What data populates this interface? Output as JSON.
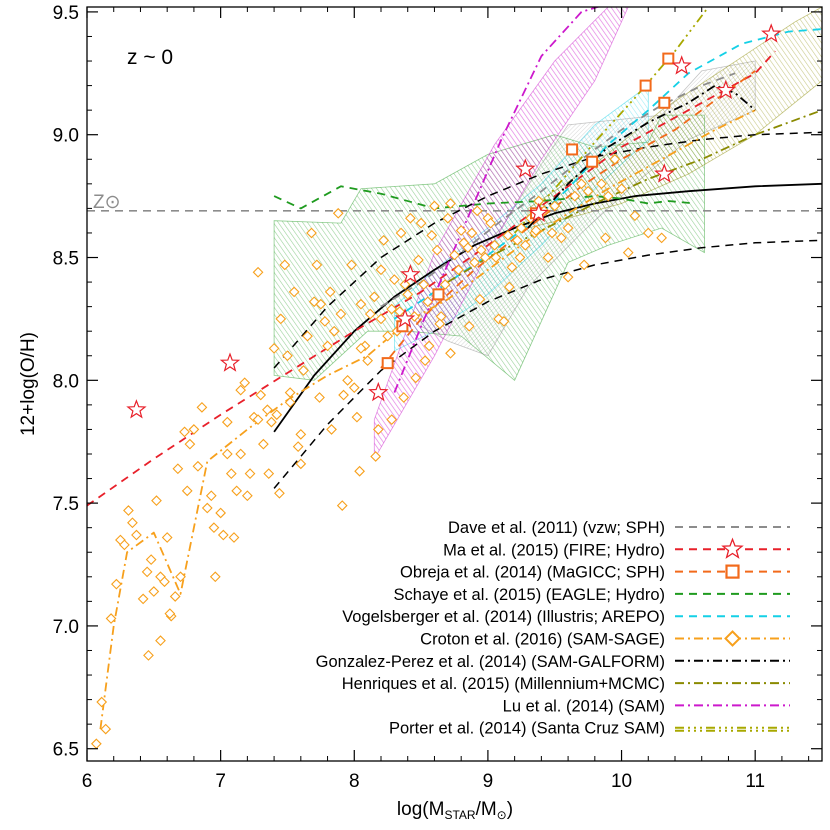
{
  "chart_data": {
    "type": "scatter",
    "title": "",
    "annotation": "z ~ 0",
    "solar_label": "Z⊙",
    "xlabel": {
      "base": "log(M",
      "sub1": "STAR",
      "mid": "/M",
      "sub2": "⊙",
      "end": ")"
    },
    "ylabel": "12+log(O/H)",
    "xlim": [
      6,
      11.5
    ],
    "ylim": [
      6.45,
      9.52
    ],
    "xticks": [
      6,
      7,
      8,
      9,
      10,
      11
    ],
    "yticks": [
      6.5,
      7.0,
      7.5,
      8.0,
      8.5,
      9.0,
      9.5
    ],
    "ytick_labels": [
      "6.5",
      "7.0",
      "7.5",
      "8.0",
      "8.5",
      "9.0",
      "9.5"
    ],
    "solar_value": 8.69,
    "legend_position": "bottom-right",
    "colors": {
      "dave": "#8c8c8c",
      "ma": "#e8202a",
      "obreja": "#f26a1b",
      "schaye": "#1f9b1f",
      "vogelsberger": "#14d0e6",
      "croton": "#f7a01c",
      "gonzalez": "#000000",
      "henriques": "#8a8a00",
      "lu": "#cc19cc",
      "porter": "#a8a800",
      "observed": "#000000"
    },
    "legend": [
      {
        "key": "dave",
        "label": "Dave et al. (2011) (vzw; SPH)",
        "dash": "8,6",
        "marker": "none"
      },
      {
        "key": "ma",
        "label": "Ma et al. (2015) (FIRE; Hydro)",
        "dash": "8,6",
        "marker": "star"
      },
      {
        "key": "obreja",
        "label": "Obreja et al. (2014) (MaGICC; SPH)",
        "dash": "8,6",
        "marker": "square"
      },
      {
        "key": "schaye",
        "label": "Schaye et al. (2015) (EAGLE; Hydro)",
        "dash": "8,6",
        "marker": "none"
      },
      {
        "key": "vogelsberger",
        "label": "Vogelsberger et al. (2014) (Illustris; AREPO)",
        "dash": "8,6",
        "marker": "none"
      },
      {
        "key": "croton",
        "label": "Croton et al. (2016) (SAM-SAGE)",
        "dash": "9,4,2,4",
        "marker": "diamond"
      },
      {
        "key": "gonzalez",
        "label": "Gonzalez-Perez et al. (2014) (SAM-GALFORM)",
        "dash": "9,4,2,4",
        "marker": "none"
      },
      {
        "key": "henriques",
        "label": "Henriques et al. (2015) (Millennium+MCMC)",
        "dash": "9,4,2,4",
        "marker": "none"
      },
      {
        "key": "lu",
        "label": "Lu et al. (2014) (SAM)",
        "dash": "9,4,2,4",
        "marker": "none"
      },
      {
        "key": "porter",
        "label": "Porter et al. (2014) (Santa Cruz SAM)",
        "dash": "9,4,2,4,2,4,2,4",
        "marker": "none"
      }
    ],
    "series": [
      {
        "key": "observed",
        "style": "solid",
        "x": [
          7.4,
          7.7,
          8.0,
          8.3,
          8.6,
          8.9,
          9.2,
          9.5,
          9.8,
          10.1,
          10.5,
          11.0,
          11.5
        ],
        "y": [
          7.79,
          8.02,
          8.2,
          8.34,
          8.45,
          8.55,
          8.62,
          8.68,
          8.72,
          8.75,
          8.77,
          8.79,
          8.8
        ]
      },
      {
        "key": "observed_upper",
        "style": "dashed",
        "x": [
          7.4,
          7.8,
          8.2,
          8.6,
          9.0,
          9.4,
          9.8,
          10.2,
          10.6,
          11.0,
          11.5
        ],
        "y": [
          8.05,
          8.3,
          8.5,
          8.64,
          8.75,
          8.84,
          8.91,
          8.95,
          8.98,
          9.0,
          9.01
        ]
      },
      {
        "key": "observed_lower",
        "style": "dashed",
        "x": [
          7.4,
          7.8,
          8.2,
          8.6,
          9.0,
          9.4,
          9.8,
          10.2,
          10.6,
          11.0,
          11.5
        ],
        "y": [
          7.56,
          7.82,
          8.04,
          8.2,
          8.32,
          8.41,
          8.47,
          8.51,
          8.54,
          8.56,
          8.57
        ]
      },
      {
        "key": "dave",
        "x": [
          8.2,
          8.5,
          8.8,
          9.1,
          9.4,
          9.7,
          10.0,
          10.3,
          10.6,
          10.85
        ],
        "y": [
          8.3,
          8.4,
          8.52,
          8.65,
          8.77,
          8.9,
          9.02,
          9.12,
          9.2,
          9.25
        ]
      },
      {
        "key": "ma",
        "x": [
          6.0,
          6.5,
          7.0,
          7.5,
          8.0,
          8.5,
          9.0,
          9.5,
          10.0,
          10.5,
          11.0,
          11.15
        ],
        "y": [
          7.49,
          7.68,
          7.86,
          8.03,
          8.2,
          8.36,
          8.55,
          8.75,
          8.95,
          9.1,
          9.25,
          9.34
        ]
      },
      {
        "key": "obreja",
        "x": [
          8.2,
          8.5,
          8.9,
          9.3,
          9.7,
          10.0,
          10.4,
          10.7,
          11.0
        ],
        "y": [
          8.05,
          8.25,
          8.45,
          8.62,
          8.79,
          8.9,
          9.02,
          9.14,
          9.26
        ]
      },
      {
        "key": "schaye",
        "x": [
          7.4,
          7.6,
          7.9,
          8.2,
          8.6,
          9.0,
          9.4,
          9.8,
          10.0,
          10.2,
          10.35,
          10.55
        ],
        "y": [
          8.75,
          8.7,
          8.79,
          8.76,
          8.7,
          8.72,
          8.73,
          8.75,
          8.74,
          8.72,
          8.73,
          8.72
        ]
      },
      {
        "key": "vogelsberger",
        "x": [
          8.3,
          8.6,
          9.0,
          9.3,
          9.6,
          9.9,
          10.2,
          10.5,
          10.9,
          11.25,
          11.5
        ],
        "y": [
          8.25,
          8.36,
          8.51,
          8.63,
          8.78,
          8.96,
          9.1,
          9.25,
          9.37,
          9.42,
          9.43
        ]
      },
      {
        "key": "croton",
        "x": [
          6.1,
          6.2,
          6.3,
          6.5,
          6.7,
          6.9,
          7.2,
          7.5,
          7.8,
          8.1,
          8.4,
          8.7,
          9.0,
          9.3,
          9.6,
          9.9,
          10.3,
          10.7,
          11.0
        ],
        "y": [
          6.58,
          7.0,
          7.3,
          7.38,
          7.13,
          7.67,
          7.8,
          7.92,
          8.02,
          8.1,
          8.24,
          8.33,
          8.45,
          8.57,
          8.68,
          8.78,
          8.9,
          9.02,
          9.1
        ]
      },
      {
        "key": "gonzalez",
        "x": [
          9.3,
          9.6,
          9.9,
          10.2,
          10.5,
          10.7,
          10.85,
          11.0
        ],
        "y": [
          8.62,
          8.8,
          8.95,
          9.05,
          9.13,
          9.2,
          9.17,
          9.1
        ]
      },
      {
        "key": "henriques",
        "x": [
          8.7,
          9.0,
          9.4,
          9.8,
          10.2,
          10.6,
          11.0,
          11.5
        ],
        "y": [
          8.4,
          8.5,
          8.61,
          8.72,
          8.82,
          8.9,
          9.0,
          9.1
        ]
      },
      {
        "key": "lu",
        "x": [
          8.3,
          8.5,
          8.8,
          9.1,
          9.4,
          9.7,
          10.0
        ],
        "y": [
          7.95,
          8.22,
          8.6,
          8.98,
          9.32,
          9.5,
          9.55
        ]
      },
      {
        "key": "porter",
        "x": [
          9.2,
          9.5,
          9.8,
          10.1,
          10.4,
          10.65
        ],
        "y": [
          8.6,
          8.78,
          8.97,
          9.15,
          9.34,
          9.52
        ]
      }
    ],
    "bands": [
      {
        "key": "schaye",
        "opacity": 0.45,
        "points": [
          [
            7.4,
            8.65
          ],
          [
            7.9,
            8.64
          ],
          [
            8.05,
            8.78
          ],
          [
            8.6,
            8.8
          ],
          [
            9.0,
            8.92
          ],
          [
            9.5,
            9.0
          ],
          [
            9.8,
            8.95
          ],
          [
            10.2,
            8.97
          ],
          [
            10.3,
            9.08
          ],
          [
            10.62,
            9.08
          ],
          [
            10.62,
            8.52
          ],
          [
            10.3,
            8.62
          ],
          [
            9.9,
            8.55
          ],
          [
            9.6,
            8.48
          ],
          [
            9.2,
            8.0
          ],
          [
            8.8,
            8.18
          ],
          [
            8.4,
            8.2
          ],
          [
            8.1,
            8.2
          ],
          [
            7.7,
            8.0
          ],
          [
            7.4,
            8.02
          ]
        ]
      },
      {
        "key": "vogelsberger",
        "opacity": 0.4,
        "points": [
          [
            8.3,
            8.3
          ],
          [
            8.6,
            8.45
          ],
          [
            9.0,
            8.62
          ],
          [
            9.4,
            8.8
          ],
          [
            9.8,
            9.04
          ],
          [
            10.2,
            9.2
          ],
          [
            10.2,
            8.98
          ],
          [
            9.8,
            8.78
          ],
          [
            9.4,
            8.55
          ],
          [
            9.0,
            8.35
          ],
          [
            8.6,
            8.2
          ],
          [
            8.3,
            8.12
          ]
        ]
      },
      {
        "key": "dave",
        "opacity": 0.35,
        "points": [
          [
            8.5,
            8.3
          ],
          [
            8.8,
            8.46
          ],
          [
            9.1,
            8.62
          ],
          [
            9.4,
            8.88
          ],
          [
            9.6,
            9.04
          ],
          [
            10.3,
            9.08
          ],
          [
            10.6,
            9.26
          ],
          [
            11.0,
            9.3
          ],
          [
            11.0,
            9.1
          ],
          [
            10.5,
            8.98
          ],
          [
            10.1,
            8.8
          ],
          [
            9.7,
            8.6
          ],
          [
            9.3,
            8.38
          ],
          [
            9.0,
            8.1
          ],
          [
            8.7,
            8.16
          ],
          [
            8.5,
            8.22
          ]
        ]
      },
      {
        "key": "lu",
        "opacity": 0.55,
        "points": [
          [
            8.15,
            7.84
          ],
          [
            8.6,
            8.52
          ],
          [
            9.05,
            8.96
          ],
          [
            9.5,
            9.3
          ],
          [
            9.9,
            9.52
          ],
          [
            10.05,
            9.52
          ],
          [
            9.8,
            9.22
          ],
          [
            9.4,
            8.9
          ],
          [
            9.0,
            8.52
          ],
          [
            8.6,
            8.1
          ],
          [
            8.15,
            7.68
          ]
        ]
      },
      {
        "key": "henriques",
        "opacity": 0.45,
        "points": [
          [
            9.3,
            8.7
          ],
          [
            9.8,
            8.88
          ],
          [
            10.3,
            9.1
          ],
          [
            10.8,
            9.28
          ],
          [
            11.3,
            9.46
          ],
          [
            11.5,
            9.52
          ],
          [
            11.5,
            9.22
          ],
          [
            11.0,
            9.0
          ],
          [
            10.5,
            8.84
          ],
          [
            10.0,
            8.72
          ],
          [
            9.6,
            8.66
          ],
          [
            9.3,
            8.62
          ]
        ]
      }
    ],
    "ma_stars": {
      "x": [
        6.37,
        7.07,
        8.18,
        8.38,
        8.42,
        9.28,
        9.38,
        10.32,
        10.45,
        10.78,
        11.12
      ],
      "y": [
        7.88,
        8.07,
        7.95,
        8.25,
        8.43,
        8.86,
        8.68,
        8.84,
        9.28,
        9.18,
        9.41
      ]
    },
    "obreja_squares": {
      "x": [
        8.25,
        8.36,
        8.63,
        9.36,
        9.63,
        9.78,
        10.18,
        10.32,
        10.35
      ],
      "y": [
        8.07,
        8.22,
        8.35,
        8.68,
        8.94,
        8.89,
        9.2,
        9.13,
        9.31
      ]
    },
    "croton_points": {
      "x": [
        6.07,
        6.11,
        6.14,
        6.18,
        6.22,
        6.25,
        6.28,
        6.31,
        6.34,
        6.37,
        6.42,
        6.45,
        6.48,
        6.5,
        6.52,
        6.55,
        6.58,
        6.6,
        6.63,
        6.66,
        6.7,
        6.73,
        6.77,
        6.8,
        6.83,
        6.86,
        6.9,
        6.93,
        6.96,
        7.0,
        7.02,
        7.05,
        7.08,
        7.1,
        7.12,
        7.15,
        7.18,
        7.2,
        7.22,
        7.25,
        7.28,
        7.3,
        7.32,
        7.35,
        7.38,
        7.4,
        7.42,
        7.45,
        7.48,
        7.5,
        7.52,
        7.55,
        7.58,
        7.6,
        7.62,
        7.65,
        7.68,
        7.7,
        7.72,
        7.75,
        7.78,
        7.8,
        7.82,
        7.85,
        7.88,
        7.9,
        7.92,
        7.95,
        7.98,
        8.0,
        8.02,
        8.05,
        8.08,
        8.1,
        8.12,
        8.15,
        8.18,
        8.2,
        8.22,
        8.25,
        8.28,
        8.3,
        8.32,
        8.35,
        8.38,
        8.4,
        8.42,
        8.45,
        8.48,
        8.5,
        8.52,
        8.55,
        8.58,
        8.6,
        8.62,
        8.65,
        8.68,
        8.7,
        8.72,
        8.75,
        8.78,
        8.8,
        8.82,
        8.85,
        8.88,
        8.9,
        8.92,
        8.95,
        8.98,
        9.0,
        9.02,
        9.05,
        9.08,
        9.12,
        9.15,
        9.18,
        9.22,
        9.25,
        9.28,
        9.32,
        9.35,
        9.38,
        9.42,
        9.45,
        9.5,
        9.55,
        9.6,
        9.65,
        9.7,
        9.75,
        9.8,
        9.85,
        9.9,
        9.95,
        10.0,
        10.05,
        10.1,
        10.2,
        10.3,
        6.46,
        6.55,
        6.62,
        6.68,
        6.75,
        6.95,
        7.05,
        7.15,
        7.28,
        7.36,
        7.44,
        7.52,
        7.6,
        7.74,
        7.83,
        7.91,
        8.04,
        8.16,
        8.28,
        8.37,
        8.46,
        8.56,
        8.64,
        8.72,
        8.86,
        8.94,
        9.06,
        9.16,
        9.24,
        9.36,
        9.48,
        9.6,
        9.72,
        9.88,
        8.05,
        8.2,
        8.34,
        8.53,
        8.64
      ],
      "y": [
        6.52,
        6.69,
        6.58,
        7.03,
        7.17,
        7.35,
        7.33,
        7.47,
        7.42,
        7.37,
        7.11,
        7.22,
        7.27,
        7.14,
        7.51,
        7.2,
        7.18,
        7.36,
        7.04,
        7.12,
        7.2,
        7.79,
        7.74,
        7.8,
        7.65,
        7.89,
        7.48,
        7.53,
        7.2,
        7.46,
        7.37,
        7.83,
        7.62,
        7.36,
        7.55,
        7.7,
        7.99,
        7.53,
        7.62,
        7.85,
        8.44,
        7.94,
        7.74,
        7.88,
        7.83,
        8.13,
        7.86,
        8.25,
        8.47,
        8.1,
        7.95,
        8.36,
        7.73,
        7.66,
        8.04,
        8.18,
        8.6,
        8.32,
        8.47,
        8.31,
        8.24,
        8.14,
        8.36,
        8.2,
        8.68,
        8.27,
        7.94,
        8.0,
        8.47,
        7.97,
        7.85,
        8.31,
        8.14,
        8.08,
        8.27,
        8.34,
        7.8,
        8.45,
        8.57,
        8.18,
        8.29,
        8.41,
        8.2,
        8.6,
        8.39,
        8.35,
        8.66,
        8.26,
        8.49,
        8.64,
        8.39,
        8.32,
        8.59,
        8.71,
        8.53,
        8.26,
        8.39,
        8.66,
        8.72,
        8.51,
        8.45,
        8.61,
        8.56,
        8.54,
        8.6,
        8.48,
        8.69,
        8.53,
        8.5,
        8.66,
        8.64,
        8.55,
        8.25,
        8.24,
        8.59,
        8.46,
        8.57,
        8.62,
        8.55,
        8.66,
        8.6,
        8.73,
        8.69,
        8.5,
        8.71,
        8.58,
        8.62,
        8.75,
        8.8,
        8.77,
        8.89,
        8.8,
        8.75,
        8.9,
        8.78,
        8.52,
        8.67,
        8.6,
        8.58,
        6.88,
        6.94,
        7.05,
        7.64,
        7.55,
        7.4,
        7.7,
        7.96,
        7.84,
        7.62,
        7.54,
        7.91,
        7.78,
        7.93,
        7.8,
        7.49,
        7.63,
        7.69,
        7.84,
        7.93,
        8.01,
        8.14,
        8.23,
        8.11,
        8.22,
        8.33,
        8.5,
        8.38,
        8.5,
        8.61,
        8.6,
        8.42,
        8.47,
        8.58,
        8.13,
        8.25,
        8.28,
        8.08,
        8.34
      ]
    }
  }
}
